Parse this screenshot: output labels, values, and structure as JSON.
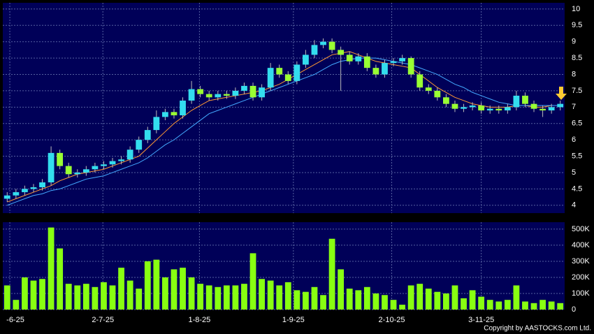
{
  "chart_data": [
    {
      "type": "candlestick",
      "up_color": "#33ddee",
      "down_color": "#99ff33",
      "xlim": [
        -0.5,
        63.5
      ],
      "ylim": [
        3.76,
        10.19
      ],
      "yticks": [
        4,
        4.5,
        5,
        5.5,
        6,
        6.5,
        7,
        7.5,
        8,
        8.5,
        9,
        9.5,
        10
      ],
      "grid": true,
      "open": [
        4.2,
        4.3,
        4.4,
        4.5,
        4.55,
        4.7,
        5.6,
        5.2,
        4.95,
        5.0,
        5.1,
        5.2,
        5.25,
        5.35,
        5.4,
        5.7,
        6.0,
        6.3,
        6.7,
        6.85,
        6.75,
        7.2,
        7.55,
        7.4,
        7.3,
        7.4,
        7.35,
        7.5,
        7.65,
        7.3,
        7.6,
        8.2,
        8.0,
        7.8,
        8.3,
        8.6,
        8.9,
        9.0,
        8.75,
        8.6,
        8.4,
        8.55,
        8.2,
        8.0,
        8.35,
        8.4,
        8.5,
        8.0,
        7.6,
        7.5,
        7.3,
        7.1,
        6.95,
        7.0,
        7.05,
        6.9,
        6.95,
        6.9,
        7.0,
        7.35,
        7.1,
        6.95,
        6.9,
        7.0
      ],
      "high": [
        4.4,
        4.5,
        4.6,
        4.65,
        4.8,
        5.8,
        5.7,
        5.3,
        5.1,
        5.2,
        5.3,
        5.35,
        5.45,
        5.5,
        5.8,
        6.1,
        6.4,
        6.9,
        6.95,
        6.95,
        7.3,
        7.8,
        7.65,
        7.5,
        7.5,
        7.5,
        7.6,
        7.75,
        7.75,
        7.7,
        8.35,
        8.3,
        8.1,
        8.4,
        8.75,
        9.05,
        9.1,
        9.1,
        8.85,
        8.7,
        8.65,
        8.65,
        8.3,
        8.45,
        8.5,
        8.6,
        8.55,
        8.1,
        7.7,
        7.6,
        7.4,
        7.2,
        7.1,
        7.15,
        7.15,
        7.05,
        7.05,
        7.1,
        7.5,
        7.45,
        7.2,
        7.05,
        7.1,
        7.2
      ],
      "low": [
        4.1,
        4.2,
        4.3,
        4.4,
        4.45,
        4.6,
        5.1,
        4.85,
        4.85,
        4.9,
        5.0,
        5.1,
        5.15,
        5.25,
        5.3,
        5.6,
        5.9,
        6.2,
        6.6,
        6.65,
        6.65,
        7.1,
        7.3,
        7.2,
        7.2,
        7.25,
        7.25,
        7.4,
        7.2,
        7.2,
        7.5,
        7.9,
        7.7,
        7.7,
        8.2,
        8.5,
        8.8,
        8.65,
        7.5,
        8.3,
        8.3,
        8.1,
        7.9,
        7.9,
        8.25,
        8.3,
        7.9,
        7.5,
        7.4,
        7.2,
        7.0,
        6.85,
        6.85,
        6.9,
        6.8,
        6.8,
        6.8,
        6.8,
        6.9,
        7.0,
        6.85,
        6.7,
        6.8,
        6.9
      ],
      "close": [
        4.3,
        4.4,
        4.5,
        4.55,
        4.7,
        5.6,
        5.2,
        4.95,
        5.0,
        5.1,
        5.2,
        5.25,
        5.35,
        5.4,
        5.7,
        6.0,
        6.3,
        6.7,
        6.85,
        6.75,
        7.2,
        7.55,
        7.4,
        7.3,
        7.4,
        7.35,
        7.5,
        7.65,
        7.3,
        7.6,
        8.2,
        8.0,
        7.8,
        8.3,
        8.6,
        8.9,
        9.0,
        8.75,
        8.6,
        8.4,
        8.55,
        8.2,
        8.0,
        8.35,
        8.4,
        8.5,
        8.0,
        7.6,
        7.5,
        7.3,
        7.1,
        6.95,
        7.0,
        7.05,
        6.9,
        6.95,
        6.9,
        7.0,
        7.35,
        7.1,
        6.95,
        6.9,
        7.0,
        7.1
      ],
      "series": [
        {
          "color": "#ff9933",
          "values": [
            4.1,
            4.2,
            4.3,
            4.4,
            4.5,
            4.6,
            4.75,
            4.85,
            4.95,
            5.0,
            5.05,
            5.1,
            5.2,
            5.3,
            5.4,
            5.5,
            5.75,
            6.0,
            6.25,
            6.5,
            6.7,
            6.9,
            7.05,
            7.2,
            7.25,
            7.3,
            7.35,
            7.4,
            7.45,
            7.5,
            7.6,
            7.7,
            7.85,
            8.0,
            8.15,
            8.3,
            8.45,
            8.6,
            8.65,
            8.7,
            8.6,
            8.5,
            8.4,
            8.35,
            8.3,
            8.25,
            8.2,
            8.0,
            7.8,
            7.6,
            7.45,
            7.3,
            7.2,
            7.1,
            7.05,
            7.0,
            7.0,
            7.0,
            7.05,
            7.05,
            7.0,
            7.0,
            7.05,
            7.05
          ]
        },
        {
          "color": "#44aaff",
          "values": [
            4.0,
            4.1,
            4.2,
            4.3,
            4.35,
            4.45,
            4.5,
            4.6,
            4.7,
            4.8,
            4.85,
            4.9,
            5.0,
            5.1,
            5.2,
            5.3,
            5.45,
            5.65,
            5.85,
            6.0,
            6.2,
            6.4,
            6.6,
            6.8,
            6.9,
            7.0,
            7.1,
            7.2,
            7.3,
            7.4,
            7.5,
            7.6,
            7.7,
            7.8,
            7.9,
            8.0,
            8.15,
            8.3,
            8.4,
            8.45,
            8.5,
            8.5,
            8.5,
            8.45,
            8.4,
            8.35,
            8.3,
            8.2,
            8.1,
            8.0,
            7.85,
            7.7,
            7.6,
            7.45,
            7.35,
            7.25,
            7.15,
            7.1,
            7.05,
            7.05,
            7.05,
            7.05,
            7.05,
            7.05
          ]
        }
      ]
    },
    {
      "type": "bar",
      "color": "#88ff11",
      "xlim": [
        -0.5,
        63.5
      ],
      "xticks": [
        {
          "value": 0.3,
          "label": "-6-25"
        },
        {
          "value": 10.9,
          "label": "2-7-25"
        },
        {
          "value": 21.9,
          "label": "1-8-25"
        },
        {
          "value": 32.6,
          "label": "1-9-25"
        },
        {
          "value": 43.8,
          "label": "2-10-25"
        },
        {
          "value": 54.0,
          "label": "3-11-25"
        }
      ],
      "ylim": [
        0,
        543000
      ],
      "yticks": [
        0,
        {
          "value": 100000,
          "label": "100K"
        },
        {
          "value": 200000,
          "label": "200K"
        },
        {
          "value": 300000,
          "label": "300K"
        },
        {
          "value": 400000,
          "label": "400K"
        },
        {
          "value": 500000,
          "label": "500K"
        }
      ],
      "grid": true,
      "values": [
        150000,
        60000,
        200000,
        180000,
        190000,
        510000,
        380000,
        160000,
        150000,
        160000,
        140000,
        170000,
        150000,
        260000,
        180000,
        130000,
        300000,
        310000,
        200000,
        250000,
        260000,
        200000,
        160000,
        150000,
        140000,
        150000,
        150000,
        160000,
        350000,
        190000,
        180000,
        150000,
        170000,
        120000,
        110000,
        140000,
        90000,
        440000,
        250000,
        130000,
        120000,
        140000,
        100000,
        90000,
        60000,
        30000,
        150000,
        160000,
        130000,
        110000,
        100000,
        150000,
        70000,
        120000,
        80000,
        60000,
        50000,
        60000,
        150000,
        50000,
        40000,
        60000,
        50000,
        40000
      ]
    }
  ],
  "copyright": "Copyright by AASTOCKS.com Ltd."
}
